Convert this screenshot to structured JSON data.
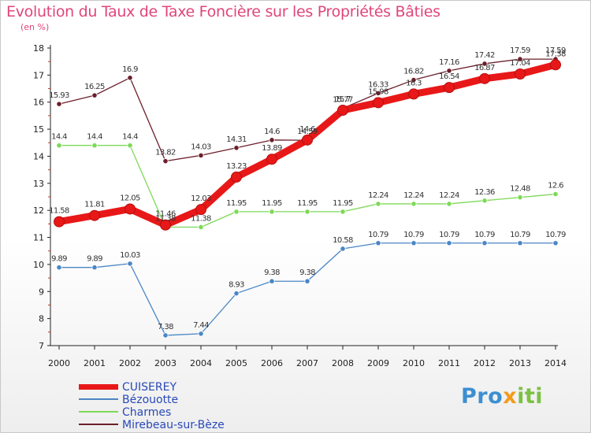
{
  "header": {
    "title": "Evolution du Taux de Taxe Foncière sur les Propriétés Bâties",
    "subtitle": "(en %)"
  },
  "colors": {
    "title": "#e0457b",
    "legend_text": "#2a49b8",
    "axis": "#222222",
    "dash_ticks": "#c0392b"
  },
  "chart_data": {
    "type": "line",
    "title": "Evolution du Taux de Taxe Foncière sur les Propriétés Bâties",
    "ylabel": "(en %)",
    "xlabel": "",
    "ylim": [
      7,
      18
    ],
    "yticks": [
      7,
      8,
      9,
      10,
      11,
      12,
      13,
      14,
      15,
      16,
      17,
      18
    ],
    "categories": [
      "2000",
      "2001",
      "2002",
      "2003",
      "2004",
      "2005",
      "2006",
      "2007",
      "2008",
      "2009",
      "2010",
      "2011",
      "2012",
      "2013",
      "2014"
    ],
    "series": [
      {
        "name": "Mirebeau-sur-Bèze",
        "color": "#6b1f2a",
        "values": [
          15.93,
          16.25,
          16.9,
          13.82,
          14.03,
          14.31,
          14.6,
          14.59,
          15.77,
          16.33,
          16.82,
          17.16,
          17.42,
          17.59,
          17.59
        ],
        "labels": [
          "15.93",
          "16.25",
          "16.9",
          "13.82",
          "14.03",
          "14.31",
          "14.6",
          "14.59",
          "15.77",
          "16.33",
          "16.82",
          "17.16",
          "17.42",
          "17.59",
          "17.59"
        ]
      },
      {
        "name": "Charmes",
        "color": "#7ed957",
        "values": [
          14.4,
          14.4,
          14.4,
          11.38,
          11.38,
          11.95,
          11.95,
          11.95,
          11.95,
          12.24,
          12.24,
          12.24,
          12.36,
          12.48,
          12.6
        ],
        "labels": [
          "14.4",
          "14.4",
          "14.4",
          "11.38",
          "11.38",
          "11.95",
          "11.95",
          "11.95",
          "11.95",
          "12.24",
          "12.24",
          "12.24",
          "12.36",
          "12.48",
          "12.6"
        ]
      },
      {
        "name": "Bézouotte",
        "color": "#4a86c5",
        "values": [
          9.89,
          9.89,
          10.03,
          7.38,
          7.44,
          8.93,
          9.38,
          9.38,
          10.58,
          10.79,
          10.79,
          10.79,
          10.79,
          10.79,
          10.79
        ],
        "labels": [
          "9.89",
          "9.89",
          "10.03",
          "7.38",
          "7.44",
          "8.93",
          "9.38",
          "9.38",
          "10.58",
          "10.79",
          "10.79",
          "10.79",
          "10.79",
          "10.79",
          "10.79"
        ]
      },
      {
        "name": "CUISEREY",
        "color": "#e81818",
        "values": [
          11.58,
          11.81,
          12.05,
          11.46,
          12.03,
          13.23,
          13.89,
          14.6,
          15.7,
          15.98,
          16.3,
          16.54,
          16.87,
          17.04,
          17.38
        ],
        "labels": [
          "11.58",
          "11.81",
          "12.05",
          "11.46",
          "12.03",
          "13.23",
          "13.89",
          "14.6",
          "15.7",
          "15.98",
          "16.3",
          "16.54",
          "16.87",
          "17.04",
          "17.38"
        ]
      }
    ]
  },
  "legend": {
    "items": [
      {
        "label": "CUISEREY",
        "color": "#e81818"
      },
      {
        "label": "Bézouotte",
        "color": "#4a86c5"
      },
      {
        "label": "Charmes",
        "color": "#7ed957"
      },
      {
        "label": "Mirebeau-sur-Bèze",
        "color": "#6b1f2a"
      }
    ]
  },
  "logo": {
    "text": "Proxiti",
    "letters": [
      {
        "ch": "P",
        "color": "#3c8fd1"
      },
      {
        "ch": "r",
        "color": "#3c8fd1"
      },
      {
        "ch": "o",
        "color": "#3c8fd1"
      },
      {
        "ch": "x",
        "color": "#f39a1e"
      },
      {
        "ch": "i",
        "color": "#7bc143"
      },
      {
        "ch": "t",
        "color": "#7bc143"
      },
      {
        "ch": "i",
        "color": "#7bc143"
      }
    ]
  }
}
